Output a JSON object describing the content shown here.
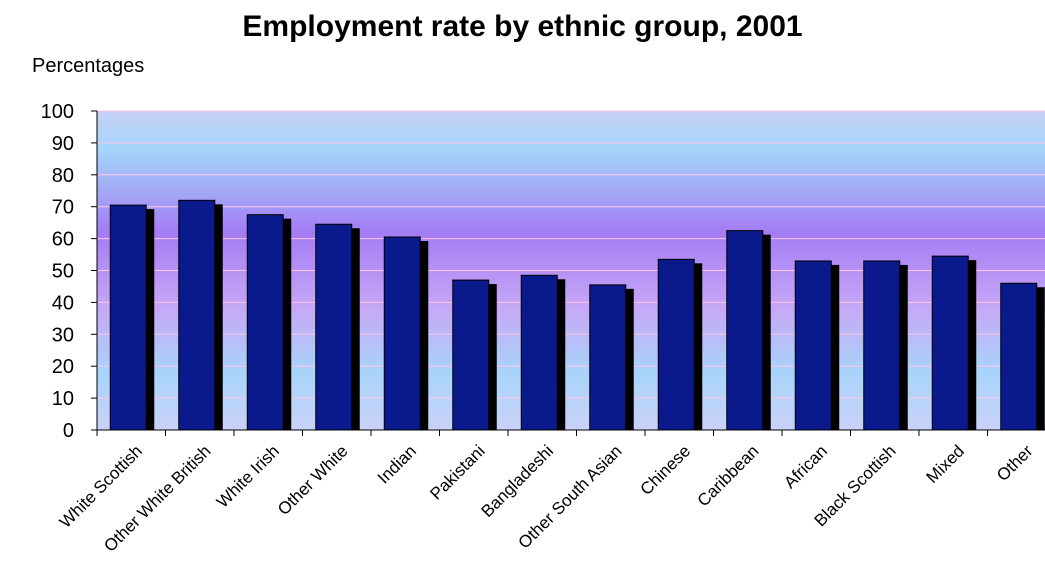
{
  "chart_data": {
    "type": "bar",
    "title": "Employment rate by ethnic group, 2001",
    "ylabel": "Percentages",
    "xlabel": "",
    "ylim": [
      0,
      100
    ],
    "yticks": [
      "0",
      "10",
      "20",
      "30",
      "40",
      "50",
      "60",
      "70",
      "80",
      "90",
      "100"
    ],
    "categories": [
      "White Scottish",
      "Other White British",
      "White Irish",
      "Other White",
      "Indian",
      "Pakistani",
      "Bangladeshi",
      "Other South Asian",
      "Chinese",
      "Caribbean",
      "African",
      "Black Scottish",
      "Mixed",
      "Other"
    ],
    "values": [
      70.5,
      72,
      67.5,
      64.5,
      60.5,
      47,
      48.5,
      45.5,
      53.5,
      62.5,
      53,
      53,
      54.5,
      46
    ],
    "grid": true,
    "legend": "none",
    "colors": {
      "bar": "#0a1a8c",
      "bar_shadow": "#000000",
      "background_top": "#c8d4f8",
      "background_mid": "#a878f2",
      "background_bottom": "#c8d4f8",
      "gridline": "#ffc4e8"
    }
  }
}
